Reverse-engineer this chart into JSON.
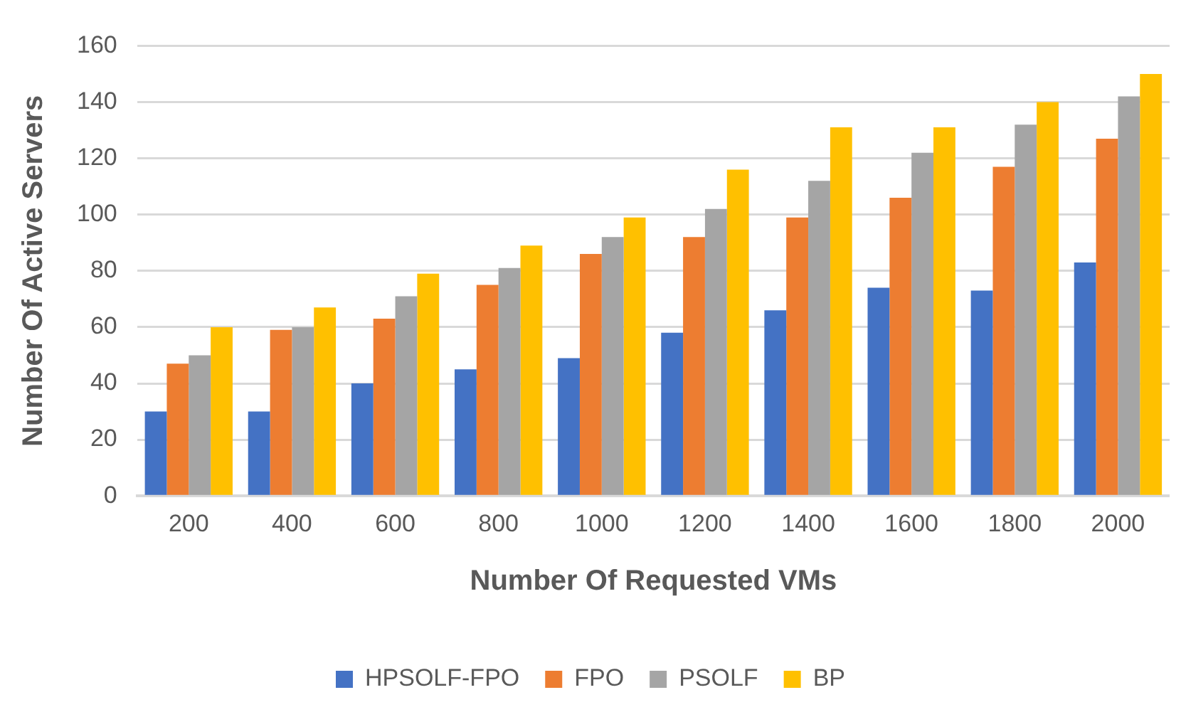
{
  "chart_data": {
    "type": "bar",
    "xlabel": "Number Of Requested VMs",
    "ylabel": "Number Of Active Servers",
    "categories": [
      "200",
      "400",
      "600",
      "800",
      "1000",
      "1200",
      "1400",
      "1600",
      "1800",
      "2000"
    ],
    "series": [
      {
        "name": "HPSOLF-FPO",
        "color": "#4472c4",
        "values": [
          30,
          30,
          40,
          45,
          49,
          58,
          66,
          74,
          73,
          83
        ]
      },
      {
        "name": "FPO",
        "color": "#ed7d31",
        "values": [
          47,
          59,
          63,
          75,
          86,
          92,
          99,
          106,
          117,
          127
        ]
      },
      {
        "name": "PSOLF",
        "color": "#a5a5a5",
        "values": [
          50,
          60,
          71,
          81,
          92,
          102,
          112,
          122,
          132,
          142
        ]
      },
      {
        "name": "BP",
        "color": "#ffc000",
        "values": [
          60,
          67,
          79,
          89,
          99,
          116,
          131,
          131,
          140,
          150
        ]
      }
    ],
    "ylim": [
      0,
      160
    ],
    "yticks": [
      0,
      20,
      40,
      60,
      80,
      100,
      120,
      140,
      160
    ],
    "grid": "y",
    "legend": "bottom"
  }
}
